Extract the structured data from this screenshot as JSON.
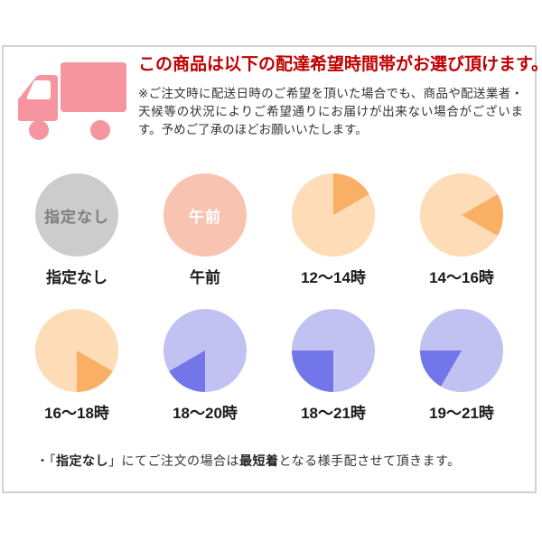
{
  "header": {
    "title": "この商品は以下の配達希望時間帯がお選び頂けます。",
    "title_color": "#c00000",
    "description": "※ご注文時に配送日時のご希望を頂いた場合でも、商品や配送業者・天候等の状況によりご希望通りにお届けが出来ない場合がございます。予めご了承のほどお願いいたします。",
    "truck_color": "#f6959f"
  },
  "slots": [
    {
      "id": "none",
      "label": "指定なし",
      "inner_text": "指定なし",
      "circle_color": "#cccccc",
      "inner_text_color": "#7d7d7d"
    },
    {
      "id": "morning",
      "label": "午前",
      "inner_text": "午前",
      "circle_color": "#f9c3b1",
      "inner_text_color": "#ffffff"
    },
    {
      "id": "12-14",
      "label": "12〜14時",
      "circle_color": "#fddcb7",
      "wedge_color": "#f9b065",
      "wedge_start_deg": 0,
      "wedge_end_deg": 60
    },
    {
      "id": "14-16",
      "label": "14〜16時",
      "circle_color": "#fddcb7",
      "wedge_color": "#f9b065",
      "wedge_start_deg": 60,
      "wedge_end_deg": 120
    },
    {
      "id": "16-18",
      "label": "16〜18時",
      "circle_color": "#fddcb7",
      "wedge_color": "#f9b065",
      "wedge_start_deg": 120,
      "wedge_end_deg": 180
    },
    {
      "id": "18-20",
      "label": "18〜20時",
      "circle_color": "#c1c2f1",
      "wedge_color": "#7276e8",
      "wedge_start_deg": 180,
      "wedge_end_deg": 240
    },
    {
      "id": "18-21",
      "label": "18〜21時",
      "circle_color": "#c1c2f1",
      "wedge_color": "#7276e8",
      "wedge_start_deg": 180,
      "wedge_end_deg": 270
    },
    {
      "id": "19-21",
      "label": "19〜21時",
      "circle_color": "#c1c2f1",
      "wedge_color": "#7276e8",
      "wedge_start_deg": 210,
      "wedge_end_deg": 270
    }
  ],
  "footer": {
    "prefix": "・「",
    "bold_1": "指定なし",
    "mid": "」にてご注文の場合は",
    "bold_2": "最短着",
    "suffix": "となる様手配させて頂きます。"
  }
}
